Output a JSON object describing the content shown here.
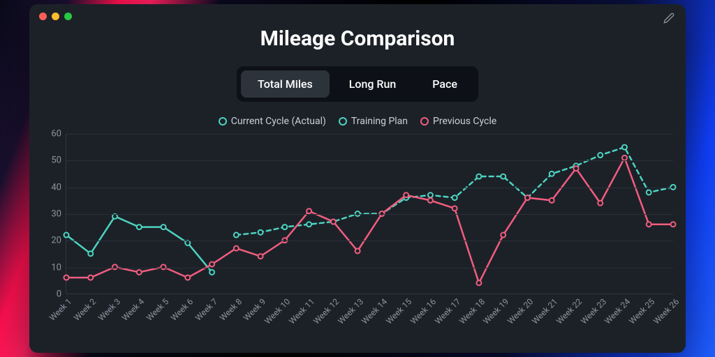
{
  "window": {
    "title": "Mileage Comparison",
    "background_color": "#1c2128",
    "title_color": "#ffffff",
    "title_fontsize": 30
  },
  "tabs": {
    "items": [
      {
        "label": "Total Miles",
        "active": true
      },
      {
        "label": "Long Run",
        "active": false
      },
      {
        "label": "Pace",
        "active": false
      }
    ],
    "container_bg": "#0d1117",
    "active_bg": "#2d333b",
    "text_color": "#ffffff"
  },
  "legend": {
    "items": [
      {
        "label": "Current Cycle (Actual)",
        "color": "#4dd4c0",
        "dashed": false
      },
      {
        "label": "Training Plan",
        "color": "#4dd4c0",
        "dashed": true
      },
      {
        "label": "Previous Cycle",
        "color": "#f25d7e",
        "dashed": false
      }
    ],
    "text_color": "#c9d1d9",
    "fontsize": 14
  },
  "chart": {
    "type": "line",
    "ylim": [
      0,
      60
    ],
    "ytick_step": 10,
    "y_ticks": [
      0,
      10,
      20,
      30,
      40,
      50,
      60
    ],
    "x_labels": [
      "Week 1",
      "Week 2",
      "Week 3",
      "Week 4",
      "Week 5",
      "Week 6",
      "Week 7",
      "Week 8",
      "Week 9",
      "Week 10",
      "Week 11",
      "Week 12",
      "Week 13",
      "Week 14",
      "Week 15",
      "Week 16",
      "Week 17",
      "Week 18",
      "Week 19",
      "Week 20",
      "Week 21",
      "Week 22",
      "Week 23",
      "Week 24",
      "Week 25",
      "Week 26"
    ],
    "grid_color": "#2a3038",
    "axis_color": "#30363d",
    "tick_label_color": "#8b949e",
    "tick_fontsize": 13,
    "line_width": 2.5,
    "marker_radius": 3.5,
    "marker_fill": "#1c2128",
    "series": [
      {
        "name": "Current Cycle (Actual)",
        "color": "#4dd4c0",
        "dashed": false,
        "values": [
          22,
          15,
          29,
          25,
          25,
          19,
          8
        ]
      },
      {
        "name": "Training Plan",
        "color": "#4dd4c0",
        "dashed": true,
        "dash_pattern": "6 5",
        "values": [
          null,
          null,
          null,
          null,
          null,
          null,
          null,
          22,
          23,
          25,
          26,
          27,
          30,
          30,
          36,
          37,
          36,
          44,
          44,
          36,
          45,
          48,
          52,
          55,
          38,
          40
        ]
      },
      {
        "name": "Previous Cycle",
        "color": "#f25d7e",
        "dashed": false,
        "values": [
          6,
          6,
          10,
          8,
          10,
          6,
          11,
          17,
          14,
          20,
          31,
          27,
          16,
          30,
          37,
          35,
          32,
          4,
          22,
          36,
          35,
          47,
          34,
          51,
          26,
          26
        ]
      }
    ]
  }
}
